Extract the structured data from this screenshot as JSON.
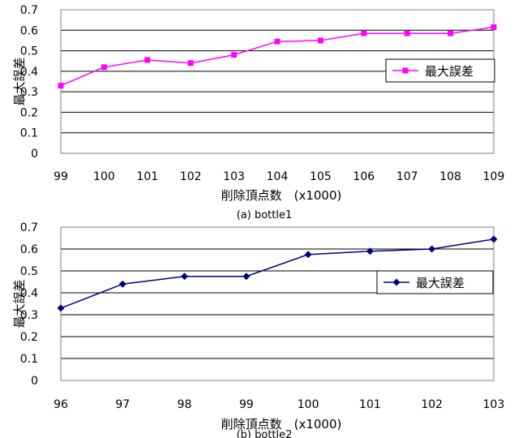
{
  "chart_data": [
    {
      "type": "line",
      "caption": "(a) bottle1",
      "xlabel": "削除頂点数　(x1000)",
      "ylabel": "最大誤差",
      "x": [
        99,
        100,
        101,
        102,
        103,
        104,
        105,
        106,
        107,
        108,
        109
      ],
      "ylim": [
        0,
        0.7
      ],
      "yticks": [
        "0",
        "0.1",
        "0.2",
        "0.3",
        "0.4",
        "0.5",
        "0.6",
        "0.7"
      ],
      "xticks": [
        "99",
        "100",
        "101",
        "102",
        "103",
        "104",
        "105",
        "106",
        "107",
        "108",
        "109"
      ],
      "grid": true,
      "legend_position": "right",
      "series": [
        {
          "name": "最大誤差",
          "color": "#ff00ff",
          "marker": "square",
          "values": [
            0.33,
            0.42,
            0.455,
            0.44,
            0.48,
            0.545,
            0.55,
            0.585,
            0.585,
            0.585,
            0.615
          ]
        }
      ]
    },
    {
      "type": "line",
      "caption": "(b) bottle2",
      "xlabel": "削除頂点数　(x1000)",
      "ylabel": "最大誤差",
      "x": [
        96,
        97,
        98,
        99,
        100,
        101,
        102,
        103
      ],
      "ylim": [
        0,
        0.7
      ],
      "yticks": [
        "0",
        "0.1",
        "0.2",
        "0.3",
        "0.4",
        "0.5",
        "0.6",
        "0.7"
      ],
      "xticks": [
        "96",
        "97",
        "98",
        "99",
        "100",
        "101",
        "102",
        "103"
      ],
      "grid": true,
      "legend_position": "right",
      "series": [
        {
          "name": "最大誤差",
          "color": "#000080",
          "marker": "diamond",
          "values": [
            0.33,
            0.44,
            0.475,
            0.475,
            0.575,
            0.59,
            0.6,
            0.645
          ]
        }
      ]
    }
  ]
}
